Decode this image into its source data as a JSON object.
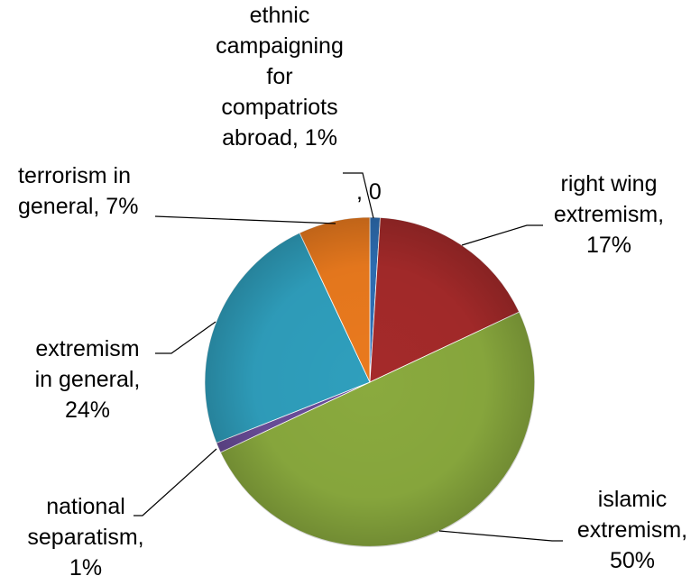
{
  "chart_data": {
    "type": "pie",
    "slices": [
      {
        "label": "ethnic campaigning for compatriots abroad",
        "value": 1,
        "color": "#2e6fb5"
      },
      {
        "label": "right wing extremism",
        "value": 17,
        "color": "#a52a2a"
      },
      {
        "label": "islamic extremism",
        "value": 50,
        "color": "#8aaa3e"
      },
      {
        "label": "national separatism",
        "value": 1,
        "color": "#6a4d9a"
      },
      {
        "label": "extremism in general",
        "value": 24,
        "color": "#2f9fbd"
      },
      {
        "label": "terrorism in general",
        "value": 7,
        "color": "#ea7a1e"
      }
    ],
    "data_labels": {
      "ethnic": "ethnic\ncampaigning\nfor\ncompatriots\nabroad, 1%",
      "zero": ", 0",
      "right_wing": "right wing\nextremism,\n17%",
      "islamic": "islamic\nextremism,\n50%",
      "national": "national\nseparatism,\n1%",
      "extremism": "extremism\nin general,\n24%",
      "terrorism": "terrorism in\ngeneral, 7%"
    }
  }
}
